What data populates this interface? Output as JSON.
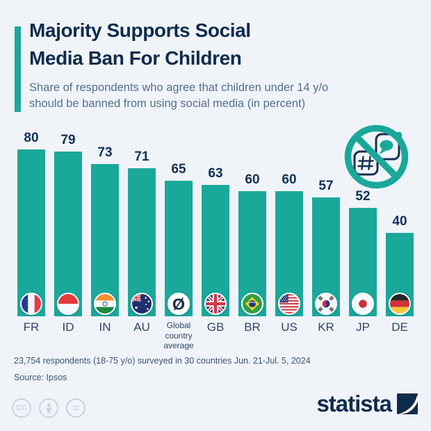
{
  "colors": {
    "background": "#f0f4f9",
    "accent_teal": "#1aa89b",
    "title_navy": "#0e2b4d",
    "subtitle_gray_blue": "#53708f",
    "value_label": "#0f315a",
    "license_gray": "#c9d2de"
  },
  "header": {
    "title_line1": "Majority Supports Social",
    "title_line2": "Media Ban For Children",
    "subtitle_line1": "Share of respondents who agree that children under 14 y/o",
    "subtitle_line2": "should be banned from using social media (in percent)"
  },
  "chart_data": {
    "type": "bar",
    "title": "Majority Supports Social Media Ban For Children",
    "subtitle": "Share of respondents who agree that children under 14 y/o should be banned from using social media (in percent)",
    "categories": [
      "FR",
      "ID",
      "IN",
      "AU",
      "Global country average",
      "GB",
      "BR",
      "US",
      "KR",
      "JP",
      "DE"
    ],
    "values": [
      80,
      79,
      73,
      71,
      65,
      63,
      60,
      60,
      57,
      52,
      40
    ],
    "flags": [
      "fr",
      "id",
      "in",
      "au",
      "global",
      "gb",
      "br",
      "us",
      "kr",
      "jp",
      "de"
    ],
    "bar_color": "#1aa89b",
    "value_labels_shown": true,
    "ylim": [
      0,
      100
    ],
    "grid": false,
    "legend": null,
    "xlabel": "",
    "ylabel": ""
  },
  "decorations": {
    "no_social_media_icon": "circle-slash over hashtag app and chat app icons",
    "global_average_symbol": "Ø"
  },
  "footer": {
    "note_line1": "23,754 respondents (18-75 y/o) surveyed in 30 countries Jun. 21-Jul. 5, 2024",
    "note_line2": "Source: Ipsos",
    "license_cc_label": "CC",
    "license_nd_label": "=",
    "brand": "statista"
  }
}
